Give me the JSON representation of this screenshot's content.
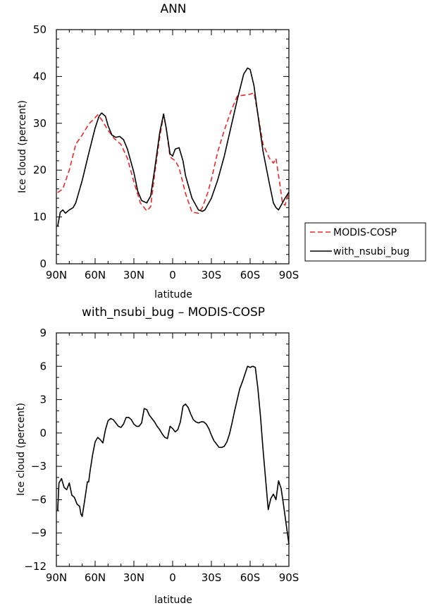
{
  "chart_data": [
    {
      "type": "line",
      "title": "ANN",
      "xlabel": "latitude",
      "ylabel": "Ice cloud (percent)",
      "xlim": [
        90,
        -90
      ],
      "ylim": [
        0,
        50
      ],
      "xticks": [
        90,
        60,
        30,
        0,
        -30,
        -60,
        -90
      ],
      "xtick_labels": [
        "90N",
        "60N",
        "30N",
        "0",
        "30S",
        "60S",
        "90S"
      ],
      "yticks": [
        0,
        10,
        20,
        30,
        40,
        50
      ],
      "ytick_labels": [
        "0",
        "10",
        "20",
        "30",
        "40",
        "50"
      ],
      "legend_position": "outside-right",
      "series": [
        {
          "name": "MODIS-COSP",
          "color": "#e8282a",
          "dash": "dashed",
          "x": [
            89,
            85,
            80,
            75,
            70,
            65,
            60,
            58,
            55,
            50,
            45,
            40,
            35,
            30,
            25,
            20,
            17,
            14,
            10,
            7,
            5,
            2,
            -2,
            -5,
            -10,
            -15,
            -20,
            -23,
            -27,
            -30,
            -35,
            -40,
            -45,
            -50,
            -55,
            -60,
            -63,
            -66,
            -70,
            -75,
            -78,
            -80,
            -83,
            -85,
            -87,
            -90
          ],
          "y": [
            15.2,
            16,
            20,
            25.5,
            27.5,
            29.8,
            31.2,
            31.8,
            30.8,
            28.5,
            26.7,
            25.5,
            22.5,
            17.5,
            13,
            11.3,
            12.2,
            19,
            27,
            31.8,
            29,
            22.8,
            22,
            20.5,
            15,
            11,
            10.8,
            12,
            15,
            18,
            24,
            28.5,
            32.5,
            35.8,
            36,
            36.2,
            36.5,
            32,
            25.5,
            22.5,
            21.5,
            22.5,
            17,
            13,
            12.5,
            15.3
          ]
        },
        {
          "name": "with_nsubi_bug",
          "color": "#000000",
          "dash": "solid",
          "x": [
            89,
            87,
            85,
            83,
            80,
            77,
            75,
            70,
            65,
            60,
            57,
            55,
            52,
            50,
            47,
            44,
            41,
            38,
            35,
            30,
            27,
            24,
            20,
            17,
            14,
            10,
            7,
            5,
            2,
            0,
            -2,
            -5,
            -8,
            -10,
            -15,
            -20,
            -23,
            -25,
            -30,
            -35,
            -40,
            -45,
            -50,
            -55,
            -58,
            -60,
            -63,
            -65,
            -70,
            -75,
            -78,
            -80,
            -82,
            -84,
            -87,
            -90
          ],
          "y": [
            8,
            11,
            11.5,
            10.8,
            11.5,
            12,
            13,
            17.8,
            23.5,
            29,
            31.5,
            32.2,
            31.5,
            29.5,
            27.5,
            27,
            27.2,
            26.5,
            24.5,
            19.5,
            15.5,
            13.5,
            13,
            14.5,
            20,
            28,
            32,
            29,
            23.5,
            23,
            24.5,
            24.8,
            22,
            18.8,
            14,
            11.5,
            11.2,
            11.5,
            14,
            18,
            23,
            29,
            35,
            40.5,
            41.8,
            41.5,
            38,
            33.8,
            24,
            17,
            13,
            12,
            11.5,
            12.5,
            14,
            15.3
          ]
        }
      ]
    },
    {
      "type": "line",
      "title": "with_nsubi_bug – MODIS-COSP",
      "xlabel": "latitude",
      "ylabel": "Ice cloud (percent)",
      "xlim": [
        90,
        -90
      ],
      "ylim": [
        -12,
        9
      ],
      "xticks": [
        90,
        60,
        30,
        0,
        -30,
        -60,
        -90
      ],
      "xtick_labels": [
        "90N",
        "60N",
        "30N",
        "0",
        "30S",
        "60S",
        "90S"
      ],
      "yticks": [
        -12,
        -9,
        -6,
        -3,
        0,
        3,
        6,
        9
      ],
      "ytick_labels": [
        "−12",
        "−9",
        "−6",
        "−3",
        "0",
        "3",
        "6",
        "9"
      ],
      "series": [
        {
          "color": "#000000",
          "dash": "solid",
          "x": [
            89,
            88,
            86,
            84,
            82,
            80,
            78,
            76,
            74,
            72,
            71,
            70,
            68,
            66,
            65,
            64,
            62,
            60,
            58,
            56,
            54,
            52,
            50,
            48,
            46,
            44,
            42,
            40,
            38,
            36,
            34,
            32,
            30,
            28,
            26,
            24,
            22,
            20,
            18,
            16,
            14,
            12,
            10,
            8,
            6,
            4,
            2,
            0,
            -2,
            -4,
            -6,
            -8,
            -10,
            -12,
            -14,
            -16,
            -18,
            -20,
            -22,
            -24,
            -26,
            -28,
            -30,
            -32,
            -34,
            -36,
            -38,
            -40,
            -42,
            -44,
            -46,
            -48,
            -50,
            -52,
            -54,
            -56,
            -58,
            -60,
            -62,
            -64,
            -66,
            -68,
            -70,
            -72,
            -74,
            -76,
            -78,
            -80,
            -82,
            -84,
            -86,
            -88,
            -90
          ],
          "y": [
            -7,
            -4.5,
            -4.1,
            -4.9,
            -5.1,
            -4.5,
            -5.6,
            -5.8,
            -6.4,
            -6.6,
            -7.3,
            -7.5,
            -6,
            -4.4,
            -4.4,
            -3.5,
            -2,
            -0.8,
            -0.4,
            -0.6,
            -0.9,
            0.3,
            1.1,
            1.3,
            1.2,
            0.9,
            0.6,
            0.5,
            0.8,
            1.4,
            1.4,
            1.2,
            0.8,
            0.6,
            0.6,
            0.9,
            2.2,
            2.1,
            1.6,
            1.3,
            1,
            0.6,
            0.3,
            -0.1,
            -0.4,
            -0.5,
            0.6,
            0.4,
            0.1,
            0.3,
            1,
            2.4,
            2.6,
            2.3,
            1.7,
            1.2,
            1.0,
            0.9,
            1.0,
            1.0,
            0.8,
            0.4,
            -0.2,
            -0.7,
            -1.0,
            -1.3,
            -1.3,
            -1.2,
            -0.8,
            -0.1,
            0.9,
            2.0,
            3.0,
            4.0,
            4.6,
            5.3,
            6.0,
            5.9,
            6.0,
            5.9,
            4.0,
            1.5,
            -1.5,
            -4.2,
            -6.9,
            -5.9,
            -5.5,
            -6.0,
            -4.3,
            -5.0,
            -6.6,
            -8.3,
            -10.0
          ]
        }
      ]
    }
  ]
}
